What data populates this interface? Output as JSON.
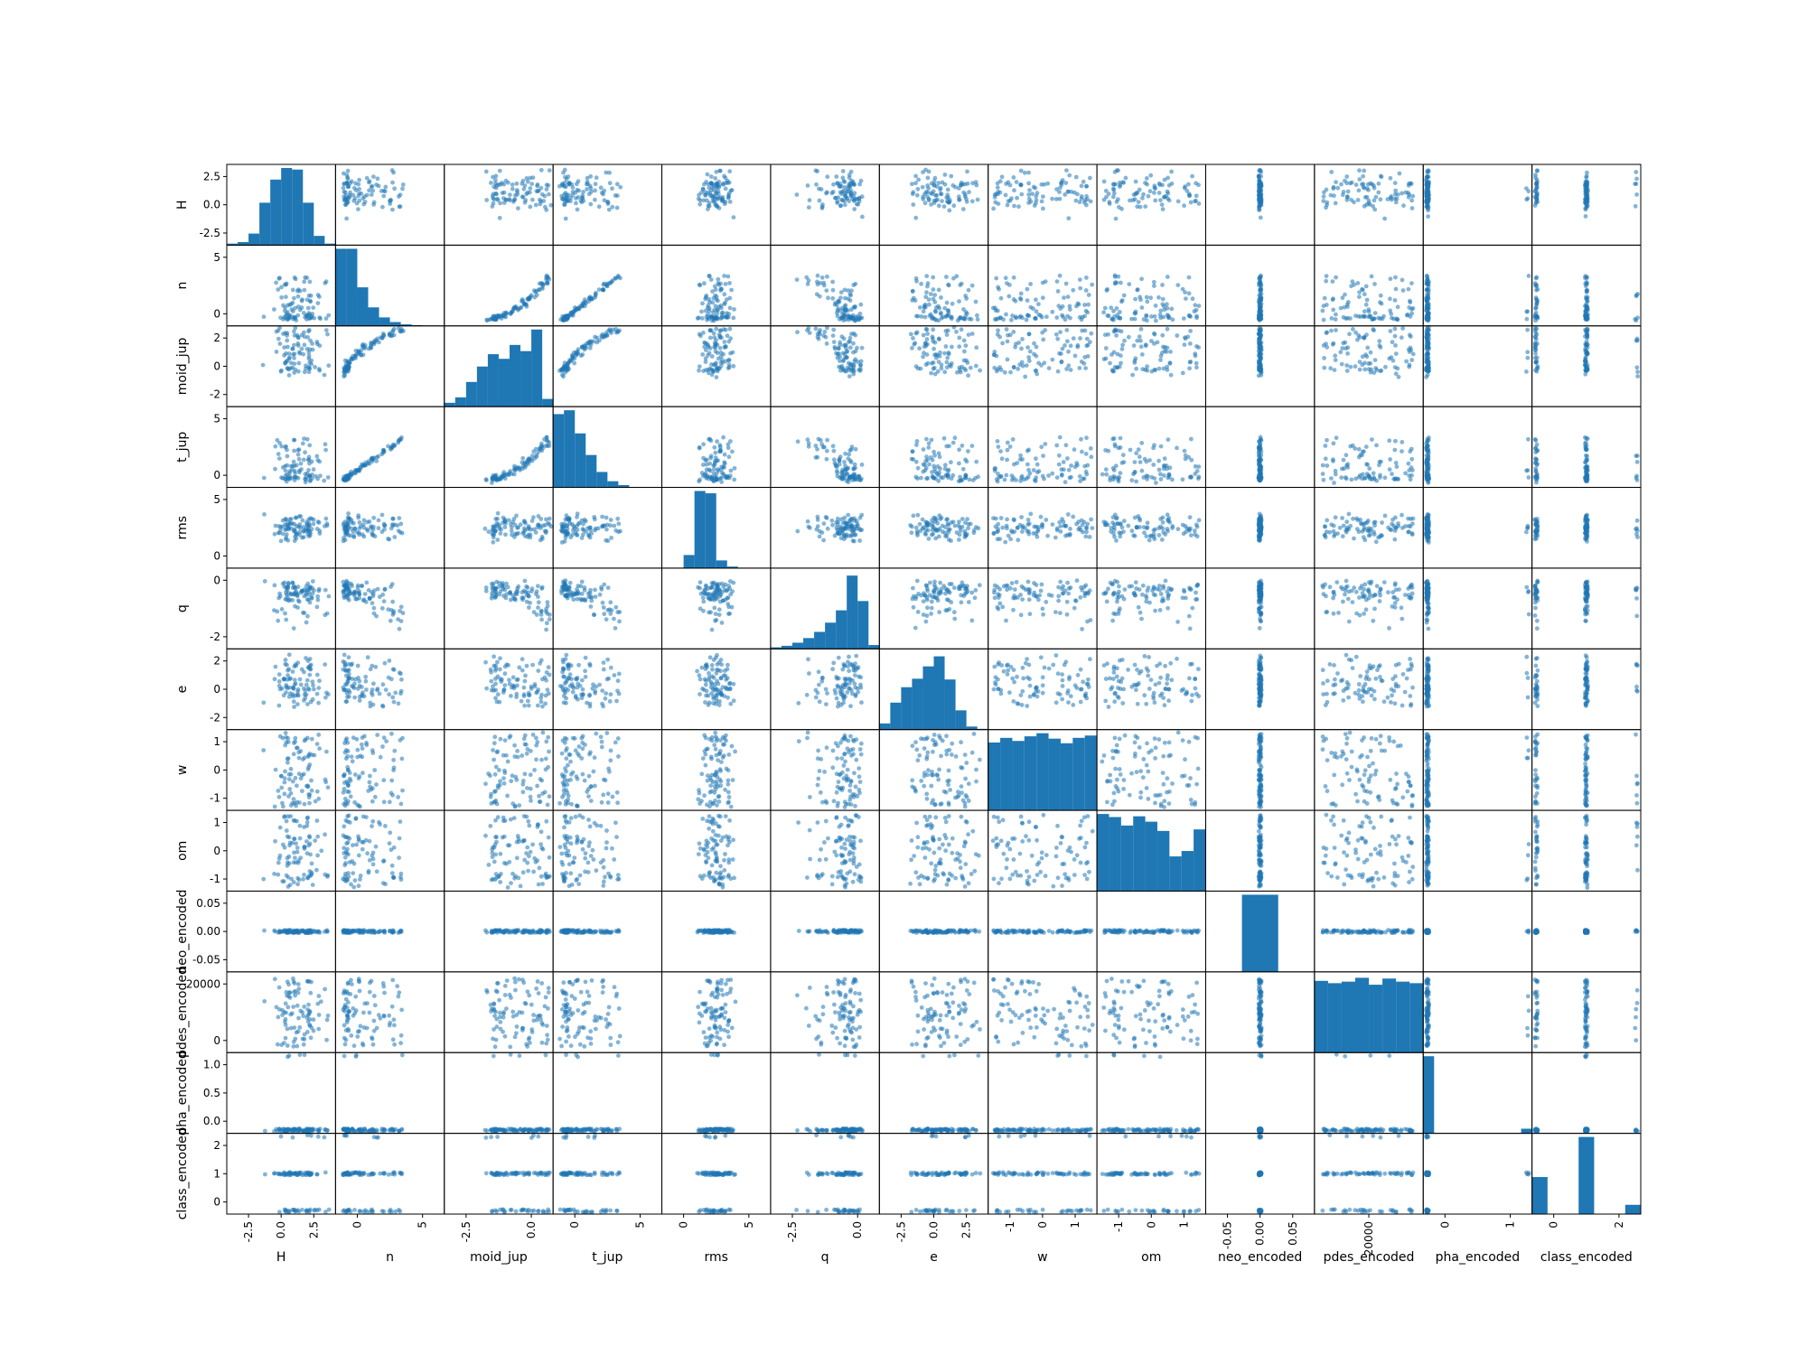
{
  "chart_data": {
    "type": "scatter",
    "subtype": "scatter_matrix",
    "title": "",
    "color": "#1f77b4",
    "diagonal": "histogram",
    "variables": [
      "H",
      "n",
      "moid_jup",
      "t_jup",
      "rms",
      "q",
      "e",
      "w",
      "om",
      "neo_encoded",
      "pdes_encoded",
      "pha_encoded",
      "class_encoded"
    ],
    "x_tick_labels": [
      [
        "-2.5",
        "0.0",
        "2.5"
      ],
      [
        "0",
        "5"
      ],
      [
        "-2.5",
        "0.0"
      ],
      [
        "0",
        "5"
      ],
      [
        "0",
        "5"
      ],
      [
        "-2.5",
        "0.0"
      ],
      [
        "-2.5",
        "0.0",
        "2.5"
      ],
      [
        "-1",
        "0",
        "1"
      ],
      [
        "-1",
        "0",
        "1"
      ],
      [
        "-0.05",
        "0.00",
        "0.05"
      ],
      [
        "20000"
      ],
      [
        "0",
        "1"
      ],
      [
        "0",
        "2"
      ]
    ],
    "y_tick_labels": [
      [
        "2.5",
        "0.0",
        "-2.5"
      ],
      [
        "5",
        "0"
      ],
      [
        "2",
        "0",
        "-2"
      ],
      [
        "5",
        "0"
      ],
      [
        "5",
        "0"
      ],
      [
        "0",
        "-2"
      ],
      [
        "2",
        "0",
        "-2"
      ],
      [
        "1",
        "0",
        "-1"
      ],
      [
        "1",
        "0",
        "-1"
      ],
      [
        "0.05",
        "0.00",
        "-0.05"
      ],
      [
        "20000",
        "0"
      ],
      [
        "1.0",
        "0.5",
        "0.0"
      ],
      [
        "2",
        "1",
        "0"
      ]
    ],
    "histograms": {
      "H": [
        0.02,
        0.04,
        0.15,
        0.55,
        0.85,
        1.0,
        0.98,
        0.55,
        0.12,
        0.02
      ],
      "n": [
        1.0,
        1.0,
        0.5,
        0.24,
        0.11,
        0.05,
        0.02,
        0.01,
        0.0,
        0.0
      ],
      "moid_jup": [
        0.05,
        0.12,
        0.32,
        0.52,
        0.68,
        0.62,
        0.8,
        0.72,
        1.0,
        0.1
      ],
      "t_jup": [
        0.95,
        1.0,
        0.7,
        0.42,
        0.2,
        0.08,
        0.03,
        0.0,
        0.0,
        0.0
      ],
      "rms": [
        0.0,
        0.0,
        0.17,
        1.0,
        0.97,
        0.1,
        0.02,
        0.0,
        0.0,
        0.0
      ],
      "q": [
        0.02,
        0.04,
        0.08,
        0.14,
        0.22,
        0.34,
        0.5,
        0.95,
        0.62,
        0.05
      ],
      "e": [
        0.08,
        0.35,
        0.55,
        0.66,
        0.82,
        0.95,
        0.65,
        0.25,
        0.04,
        0.01
      ],
      "w": [
        0.88,
        0.94,
        0.9,
        0.96,
        1.0,
        0.93,
        0.87,
        0.94,
        0.97
      ],
      "om": [
        1.0,
        0.96,
        0.85,
        0.97,
        0.9,
        0.78,
        0.45,
        0.52,
        0.8
      ],
      "neo_encoded": [
        0.0,
        1.0,
        0.0
      ],
      "pdes_encoded": [
        0.93,
        0.9,
        0.92,
        0.97,
        0.88,
        0.96,
        0.92,
        0.9
      ],
      "pha_encoded": [
        1.0,
        0.0,
        0.0,
        0.0,
        0.0,
        0.0,
        0.0,
        0.0,
        0.0,
        0.06
      ],
      "class_encoded": [
        0.48,
        0.0,
        0.0,
        1.0,
        0.0,
        0.0,
        0.12
      ]
    }
  }
}
